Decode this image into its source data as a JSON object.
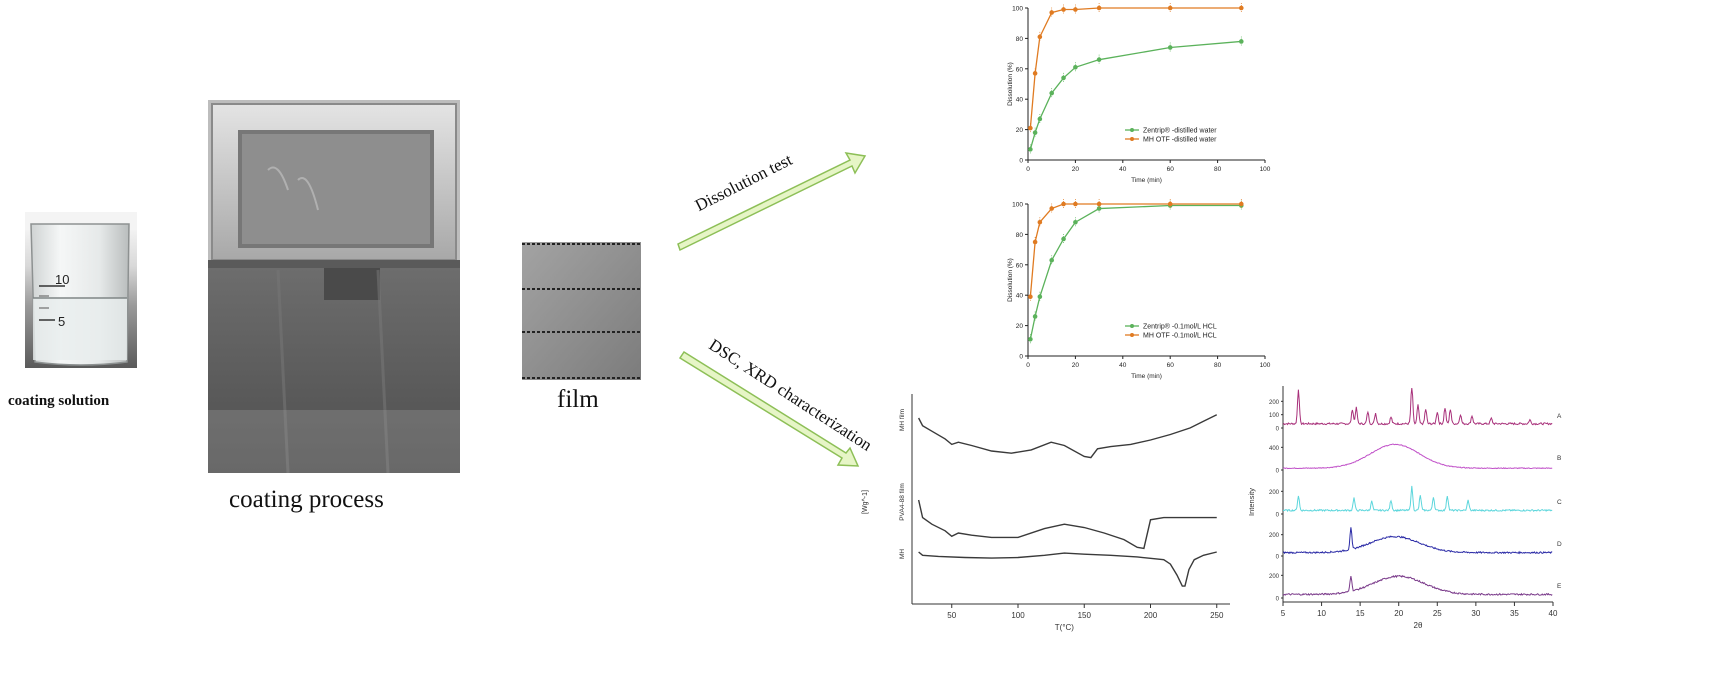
{
  "captions": {
    "coating_solution": "coating solution",
    "coating_process": "coating process",
    "film": "film"
  },
  "beaker_marks": [
    "10",
    "5"
  ],
  "arrows": {
    "upper": "Dissolution test",
    "lower": "DSC, XRD characterization"
  },
  "colors": {
    "orange_series": "#e07b22",
    "green_series": "#5bb25b",
    "arrow_fill": "#e6f5c6",
    "arrow_stroke": "#8dbf57"
  },
  "chart_data": [
    {
      "type": "line",
      "xlabel": "Time (min)",
      "ylabel": "Dissolution (%)",
      "xlim": [
        0,
        100
      ],
      "ylim": [
        0,
        100
      ],
      "xticks": [
        0,
        20,
        40,
        60,
        80,
        100
      ],
      "yticks": [
        0,
        20,
        40,
        60,
        80,
        100
      ],
      "legend_position": "lower-right",
      "series": [
        {
          "name": "Zentrip® -distilled water",
          "color": "#5bb25b",
          "x": [
            1,
            3,
            5,
            10,
            15,
            20,
            30,
            60,
            90
          ],
          "y": [
            7,
            18,
            27,
            44,
            54,
            61,
            66,
            74,
            78
          ]
        },
        {
          "name": "MH OTF -distilled water",
          "color": "#e07b22",
          "x": [
            1,
            3,
            5,
            10,
            15,
            20,
            30,
            60,
            90
          ],
          "y": [
            21,
            57,
            81,
            97,
            99,
            99,
            100,
            100,
            100
          ]
        }
      ]
    },
    {
      "type": "line",
      "xlabel": "Time (min)",
      "ylabel": "Dissolution (%)",
      "xlim": [
        0,
        100
      ],
      "ylim": [
        0,
        100
      ],
      "xticks": [
        0,
        20,
        40,
        60,
        80,
        100
      ],
      "yticks": [
        0,
        20,
        40,
        60,
        80,
        100
      ],
      "legend_position": "lower-right",
      "series": [
        {
          "name": "Zentrip® -0.1mol/L HCL",
          "color": "#5bb25b",
          "x": [
            1,
            3,
            5,
            10,
            15,
            20,
            30,
            60,
            90
          ],
          "y": [
            11,
            26,
            39,
            63,
            77,
            88,
            97,
            99,
            99
          ]
        },
        {
          "name": "MH OTF -0.1mol/L HCL",
          "color": "#e07b22",
          "x": [
            1,
            3,
            5,
            10,
            15,
            20,
            30,
            60,
            90
          ],
          "y": [
            39,
            75,
            88,
            97,
            100,
            100,
            100,
            100,
            100
          ]
        }
      ]
    },
    {
      "type": "line",
      "xlabel": "T(°C)",
      "ylabel": "[Wg^-1]",
      "xlim": [
        20,
        260
      ],
      "xticks": [
        50,
        100,
        150,
        200,
        250
      ],
      "series": [
        {
          "name": "MH film",
          "x": [
            25,
            28,
            35,
            45,
            50,
            55,
            65,
            80,
            95,
            110,
            125,
            135,
            150,
            155,
            160,
            170,
            185,
            200,
            215,
            230,
            240,
            250
          ],
          "y": [
            0.0,
            -0.7,
            -1.2,
            -1.9,
            -2.4,
            -2.2,
            -2.5,
            -3.0,
            -3.2,
            -2.9,
            -2.2,
            -2.5,
            -3.5,
            -3.6,
            -2.8,
            -2.6,
            -2.4,
            -2.0,
            -1.5,
            -0.9,
            -0.3,
            0.3
          ]
        },
        {
          "name": "PVA4-88 film",
          "x": [
            25,
            28,
            35,
            45,
            50,
            55,
            65,
            80,
            100,
            120,
            135,
            150,
            165,
            180,
            190,
            195,
            200,
            210,
            230,
            250
          ],
          "y": [
            0.0,
            -1.6,
            -2.2,
            -2.8,
            -3.3,
            -3.0,
            -3.2,
            -3.4,
            -3.4,
            -2.6,
            -2.2,
            -2.5,
            -3.0,
            -3.6,
            -4.3,
            -4.4,
            -1.8,
            -1.6,
            -1.6,
            -1.6
          ]
        },
        {
          "name": "MH",
          "x": [
            25,
            28,
            40,
            60,
            80,
            100,
            120,
            135,
            150,
            170,
            190,
            210,
            215,
            220,
            224,
            226,
            229,
            233,
            240,
            250
          ],
          "y": [
            0.0,
            -0.3,
            -0.4,
            -0.5,
            -0.55,
            -0.5,
            -0.3,
            -0.1,
            -0.2,
            -0.3,
            -0.45,
            -0.7,
            -1.1,
            -2.1,
            -3.1,
            -3.1,
            -1.6,
            -0.7,
            -0.3,
            0.0
          ]
        }
      ]
    },
    {
      "type": "line",
      "xlabel": "2θ",
      "ylabel": "Intensity",
      "xlim": [
        5,
        40
      ],
      "xticks": [
        5,
        10,
        15,
        20,
        25,
        30,
        35,
        40
      ],
      "series": [
        {
          "name": "A",
          "color": "#a8307a",
          "yticks": [
            0,
            100,
            200
          ],
          "ylim": [
            0,
            300
          ],
          "peaks": [
            [
              7.0,
              260
            ],
            [
              14.0,
              110
            ],
            [
              14.5,
              120
            ],
            [
              16.0,
              90
            ],
            [
              17.0,
              80
            ],
            [
              19.0,
              50
            ],
            [
              21.7,
              300
            ],
            [
              22.5,
              140
            ],
            [
              23.5,
              110
            ],
            [
              25.0,
              90
            ],
            [
              26.0,
              120
            ],
            [
              26.7,
              110
            ],
            [
              28.0,
              70
            ],
            [
              29.5,
              60
            ],
            [
              32.0,
              40
            ],
            [
              37.0,
              30
            ]
          ]
        },
        {
          "name": "B",
          "color": "#c050c8",
          "yticks": [
            0,
            400
          ],
          "ylim": [
            0,
            600
          ],
          "hump": [
            19.5,
            3.2,
            420
          ]
        },
        {
          "name": "C",
          "color": "#5cd6dc",
          "yticks": [
            0,
            200
          ],
          "ylim": [
            0,
            300
          ],
          "peaks": [
            [
              7.0,
              130
            ],
            [
              14.2,
              110
            ],
            [
              16.5,
              80
            ],
            [
              19.0,
              90
            ],
            [
              21.7,
              210
            ],
            [
              22.8,
              130
            ],
            [
              24.5,
              120
            ],
            [
              26.3,
              130
            ],
            [
              29.0,
              90
            ]
          ]
        },
        {
          "name": "D",
          "color": "#2a2aa6",
          "yticks": [
            0,
            200
          ],
          "ylim": [
            0,
            300
          ],
          "peaks": [
            [
              13.8,
              200
            ]
          ],
          "hump": [
            19.5,
            3.2,
            150
          ]
        },
        {
          "name": "E",
          "color": "#7a3a8a",
          "yticks": [
            0,
            200
          ],
          "ylim": [
            0,
            300
          ],
          "peaks": [
            [
              13.8,
              140
            ]
          ],
          "hump": [
            20.0,
            3.3,
            160
          ]
        }
      ]
    }
  ]
}
